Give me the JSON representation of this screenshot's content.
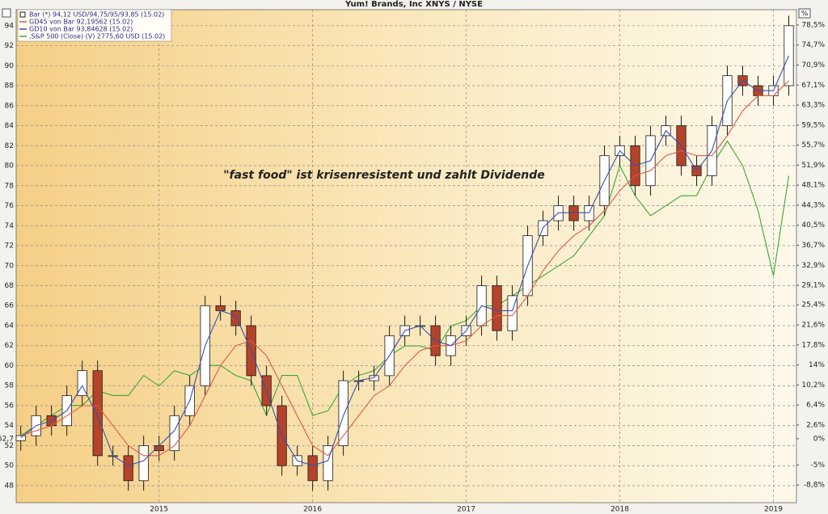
{
  "chart_data": {
    "type": "candlestick",
    "title": "Yum! Brands, Inc XNYS / NYSE",
    "annotation": "\"fast food\" ist krisenresistent und zahlt Dividende",
    "y2_unit": "%",
    "base_label": {
      "value": 52.7,
      "label": "52,7"
    },
    "x": [
      2014.1,
      2014.2,
      2014.3,
      2014.4,
      2014.5,
      2014.6,
      2014.7,
      2014.8,
      2014.9,
      2015.0,
      2015.1,
      2015.2,
      2015.3,
      2015.4,
      2015.5,
      2015.6,
      2015.7,
      2015.8,
      2015.9,
      2016.0,
      2016.1,
      2016.2,
      2016.3,
      2016.4,
      2016.5,
      2016.6,
      2016.7,
      2016.8,
      2016.9,
      2017.0,
      2017.1,
      2017.2,
      2017.3,
      2017.4,
      2017.5,
      2017.6,
      2017.7,
      2017.8,
      2017.9,
      2018.0,
      2018.1,
      2018.2,
      2018.3,
      2018.4,
      2018.5,
      2018.6,
      2018.7,
      2018.8,
      2018.9,
      2019.0,
      2019.1
    ],
    "xlim": [
      2014.07,
      2019.15
    ],
    "xticks": [
      2015,
      2016,
      2017,
      2018,
      2019
    ],
    "ylim": [
      46.3,
      95.6
    ],
    "yticks": [
      48,
      50,
      52,
      54,
      56,
      58,
      60,
      62,
      64,
      66,
      68,
      70,
      72,
      74,
      76,
      78,
      80,
      82,
      84,
      86,
      88,
      90,
      92,
      94
    ],
    "y2lim": [
      -12.14,
      81.4
    ],
    "y2ticks": [
      {
        "value": 78.5,
        "label": "78,5%"
      },
      {
        "value": 74.7,
        "label": "74,7%"
      },
      {
        "value": 70.9,
        "label": "70,9%"
      },
      {
        "value": 67.1,
        "label": "67,1%"
      },
      {
        "value": 63.3,
        "label": "63,3%"
      },
      {
        "value": 59.5,
        "label": "59,5%"
      },
      {
        "value": 55.7,
        "label": "55,7%"
      },
      {
        "value": 51.9,
        "label": "51,9%"
      },
      {
        "value": 48.1,
        "label": "48,1%"
      },
      {
        "value": 44.3,
        "label": "44,3%"
      },
      {
        "value": 40.5,
        "label": "40,5%"
      },
      {
        "value": 36.7,
        "label": "36,7%"
      },
      {
        "value": 32.9,
        "label": "32,9%"
      },
      {
        "value": 29.1,
        "label": "29,1%"
      },
      {
        "value": 25.4,
        "label": "25,4%"
      },
      {
        "value": 21.6,
        "label": "21,6%"
      },
      {
        "value": 17.8,
        "label": "17,8%"
      },
      {
        "value": 14,
        "label": "14%"
      },
      {
        "value": 10.2,
        "label": "10,2%"
      },
      {
        "value": 6.4,
        "label": "6,4%"
      },
      {
        "value": 2.6,
        "label": "2,6%"
      },
      {
        "value": 0,
        "label": "0%"
      },
      {
        "value": -5,
        "label": "-5%"
      },
      {
        "value": -8.8,
        "label": "-8,8%"
      }
    ],
    "grid": true,
    "legend": "top-left",
    "candles": {
      "name": "Bar (*) 94,12 USD/94,75/95/93,85 (15.02)",
      "up_color": "#ffffff",
      "down_color": "#b5432a",
      "edge_color": "#1a1a1a",
      "open": [
        52.5,
        53,
        55,
        54,
        57,
        59.5,
        51,
        51,
        48.5,
        52,
        51.5,
        55,
        58,
        66,
        65.5,
        64,
        59,
        56,
        50,
        51,
        48.5,
        52,
        58.5,
        58.5,
        59,
        63,
        64,
        64,
        61,
        63,
        64,
        68,
        63.5,
        67,
        73,
        74.5,
        76,
        74.5,
        76,
        81,
        82,
        78,
        83,
        84,
        80,
        79,
        84,
        89,
        88,
        87,
        88
      ],
      "high": [
        54,
        56,
        56,
        58,
        60.5,
        60.5,
        52,
        52,
        53,
        53,
        56,
        59,
        67,
        67,
        66.5,
        65,
        60,
        57,
        52,
        52,
        53,
        59.5,
        59.5,
        60,
        64,
        65,
        65,
        65,
        64,
        65,
        69,
        69,
        68,
        74,
        75.5,
        77,
        77,
        77,
        82,
        83,
        83,
        84,
        85,
        85,
        81,
        85,
        90,
        90,
        89,
        89,
        95
      ],
      "low": [
        51.5,
        52,
        53,
        53,
        56,
        50,
        50,
        47.5,
        47.5,
        50.5,
        50.5,
        54,
        57,
        64.5,
        63,
        58,
        55,
        49,
        49,
        47.5,
        47.5,
        51,
        57.5,
        57.5,
        58,
        62,
        63,
        60,
        60,
        62,
        63,
        62.5,
        62.5,
        66,
        72,
        73.5,
        73.5,
        73.5,
        75,
        80,
        77,
        77,
        82,
        79,
        78,
        78,
        83,
        87,
        86,
        86,
        87
      ],
      "close": [
        53,
        55,
        54,
        57,
        59.5,
        51,
        51,
        48.5,
        52,
        51.5,
        55,
        58,
        66,
        65.5,
        64,
        59,
        56,
        50,
        51,
        48.5,
        52,
        58.5,
        58.5,
        59,
        63,
        64,
        64,
        61,
        63,
        64,
        68,
        63.5,
        67,
        73,
        74.5,
        76,
        74.5,
        76,
        81,
        82,
        78,
        83,
        84,
        80,
        79,
        84,
        89,
        88,
        87,
        88,
        94
      ]
    },
    "series": [
      {
        "name": "GD45 von Bar 92,19562 (15.02)",
        "color": "#e0584a",
        "values": [
          53,
          53.5,
          54,
          55,
          56,
          56,
          54,
          52,
          51,
          51,
          52,
          54,
          57,
          60,
          62,
          62.5,
          61,
          58,
          55,
          52,
          51,
          53,
          55,
          57,
          58,
          60,
          61.5,
          62,
          62,
          62.5,
          64,
          65,
          65,
          67,
          69.5,
          71.5,
          73,
          74,
          75.5,
          77.5,
          79,
          79.5,
          81,
          81.5,
          81,
          81,
          83,
          85.5,
          87,
          87,
          88.5
        ]
      },
      {
        "name": "GD10 von Bar 93,84628 (15.02)",
        "color": "#3a4fb0",
        "values": [
          52.8,
          54,
          54.5,
          55.5,
          58,
          55,
          51,
          50,
          50.5,
          52,
          53.5,
          56.5,
          62,
          65.5,
          65,
          61.5,
          57.5,
          53,
          50.5,
          50,
          50.5,
          55,
          58.5,
          58.8,
          61,
          63.5,
          64,
          62.5,
          62,
          63.5,
          66,
          65.5,
          65.5,
          70,
          73.8,
          75.3,
          75.3,
          75.3,
          78.5,
          81.5,
          80,
          80.5,
          83.5,
          82,
          79.5,
          81.5,
          86.5,
          88.5,
          87.5,
          87.5,
          91
        ]
      },
      {
        "name": ",S&P 500 (Close) (V) 2775,60 USD (15.02)",
        "color": "#3aa83a",
        "axis": "y2",
        "values": [
          0.6,
          2.5,
          4.4,
          6.3,
          6.3,
          9.1,
          8.2,
          8.2,
          12,
          10,
          12.9,
          12,
          13.9,
          13.9,
          12,
          11,
          4.4,
          12,
          12,
          4.4,
          5.3,
          10,
          12,
          12.9,
          15.7,
          17.6,
          17.6,
          16.7,
          21.4,
          22.4,
          25.2,
          25.2,
          27.1,
          29,
          30.9,
          32.8,
          34.7,
          38.5,
          42.3,
          51.8,
          46.1,
          42.3,
          44.2,
          46.1,
          46.1,
          51.8,
          56.5,
          51.8,
          43.3,
          30.9,
          49.9
        ]
      }
    ]
  }
}
